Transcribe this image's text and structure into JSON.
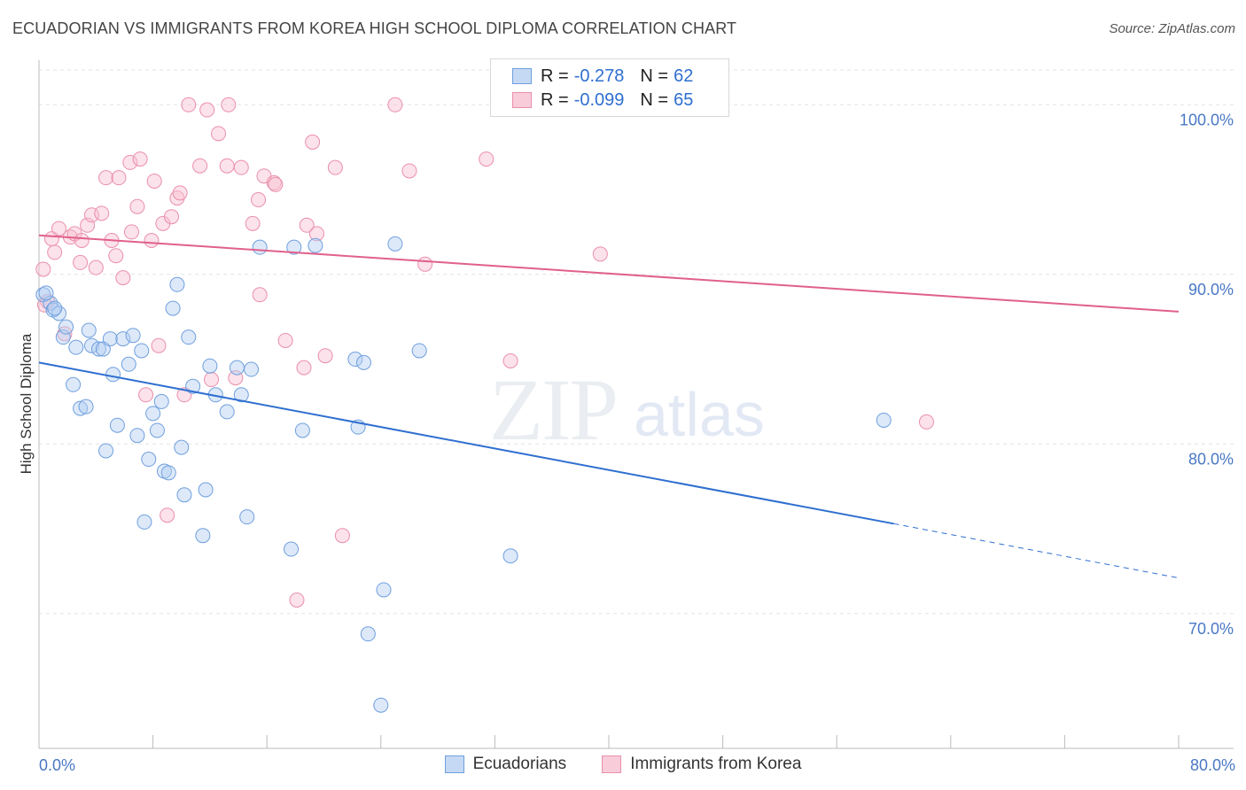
{
  "title": "ECUADORIAN VS IMMIGRANTS FROM KOREA HIGH SCHOOL DIPLOMA CORRELATION CHART",
  "source": "Source: ZipAtlas.com",
  "watermark": {
    "zip": "ZIP",
    "atlas": "atlas"
  },
  "legend_top": [
    {
      "r_label": "R =",
      "r_value": "-0.278",
      "n_label": "N =",
      "n_value": "62"
    },
    {
      "r_label": "R =",
      "r_value": "-0.099",
      "n_label": "N =",
      "n_value": "65"
    }
  ],
  "legend_bottom": [
    "Ecuadorians",
    "Immigrants from Korea"
  ],
  "chart_data": {
    "type": "scatter",
    "title": "ECUADORIAN VS IMMIGRANTS FROM KOREA HIGH SCHOOL DIPLOMA CORRELATION CHART",
    "xlabel": "",
    "ylabel": "High School Diploma",
    "xlim": [
      0,
      80
    ],
    "ylim": [
      62,
      104
    ],
    "x_tick_labels": [
      "0.0%",
      "80.0%"
    ],
    "y_ticks": [
      70,
      80,
      90,
      100
    ],
    "y_tick_labels": [
      "70.0%",
      "80.0%",
      "90.0%",
      "100.0%"
    ],
    "grid": true,
    "legend_placement": "top-center and bottom",
    "colors": {
      "blue": "#6f9fde",
      "pink": "#ea8fac",
      "blue_line": "#2f6fd0",
      "pink_line": "#e0608c"
    },
    "series": [
      {
        "name": "Ecuadorians",
        "color": "#6f9fde",
        "points": [
          [
            0.3,
            88.8
          ],
          [
            0.8,
            88.3
          ],
          [
            1.0,
            87.9
          ],
          [
            1.4,
            87.7
          ],
          [
            1.7,
            86.3
          ],
          [
            1.9,
            86.9
          ],
          [
            2.4,
            83.5
          ],
          [
            2.6,
            85.7
          ],
          [
            2.9,
            82.1
          ],
          [
            3.3,
            82.2
          ],
          [
            3.5,
            86.7
          ],
          [
            3.7,
            85.8
          ],
          [
            4.2,
            85.6
          ],
          [
            4.5,
            85.6
          ],
          [
            4.7,
            79.6
          ],
          [
            5.0,
            86.2
          ],
          [
            5.2,
            84.1
          ],
          [
            5.5,
            81.1
          ],
          [
            5.9,
            86.2
          ],
          [
            6.3,
            84.7
          ],
          [
            6.6,
            86.4
          ],
          [
            6.9,
            80.5
          ],
          [
            7.2,
            85.5
          ],
          [
            7.4,
            75.4
          ],
          [
            7.7,
            79.1
          ],
          [
            8.0,
            81.8
          ],
          [
            8.3,
            80.8
          ],
          [
            8.6,
            82.5
          ],
          [
            8.8,
            78.4
          ],
          [
            9.1,
            78.3
          ],
          [
            9.4,
            88.0
          ],
          [
            9.7,
            89.4
          ],
          [
            10.0,
            79.8
          ],
          [
            10.2,
            77.0
          ],
          [
            10.5,
            86.3
          ],
          [
            10.8,
            83.4
          ],
          [
            11.5,
            74.6
          ],
          [
            11.7,
            77.3
          ],
          [
            12.0,
            84.6
          ],
          [
            12.4,
            82.9
          ],
          [
            13.2,
            81.9
          ],
          [
            13.9,
            84.5
          ],
          [
            14.2,
            82.9
          ],
          [
            14.9,
            84.4
          ],
          [
            14.6,
            75.7
          ],
          [
            15.5,
            91.6
          ],
          [
            17.7,
            73.8
          ],
          [
            17.9,
            91.6
          ],
          [
            18.5,
            80.8
          ],
          [
            19.4,
            91.7
          ],
          [
            22.2,
            85.0
          ],
          [
            22.4,
            81.0
          ],
          [
            22.8,
            84.8
          ],
          [
            23.1,
            68.8
          ],
          [
            24.0,
            64.6
          ],
          [
            24.2,
            71.4
          ],
          [
            25.0,
            91.8
          ],
          [
            26.7,
            85.5
          ],
          [
            33.1,
            73.4
          ],
          [
            59.3,
            81.4
          ],
          [
            0.5,
            88.9
          ],
          [
            1.1,
            88.0
          ]
        ],
        "trend": {
          "x": [
            0,
            60
          ],
          "y": [
            84.8,
            75.3
          ],
          "dashed_to": [
            80,
            72.1
          ]
        }
      },
      {
        "name": "Immigrants from Korea",
        "color": "#ea8fac",
        "points": [
          [
            0.3,
            90.3
          ],
          [
            0.6,
            88.4
          ],
          [
            0.9,
            92.1
          ],
          [
            1.1,
            91.3
          ],
          [
            1.4,
            92.7
          ],
          [
            1.8,
            86.5
          ],
          [
            2.2,
            92.2
          ],
          [
            2.5,
            92.4
          ],
          [
            2.9,
            90.7
          ],
          [
            3.0,
            92.0
          ],
          [
            3.4,
            92.9
          ],
          [
            3.7,
            93.5
          ],
          [
            4.0,
            90.4
          ],
          [
            4.4,
            93.6
          ],
          [
            4.7,
            95.7
          ],
          [
            5.1,
            92.0
          ],
          [
            5.4,
            91.1
          ],
          [
            5.6,
            95.7
          ],
          [
            5.9,
            89.8
          ],
          [
            6.4,
            96.6
          ],
          [
            6.5,
            92.5
          ],
          [
            6.9,
            94.0
          ],
          [
            7.1,
            96.8
          ],
          [
            7.5,
            82.9
          ],
          [
            7.9,
            92.0
          ],
          [
            8.1,
            95.5
          ],
          [
            8.4,
            85.8
          ],
          [
            8.7,
            93.0
          ],
          [
            9.0,
            75.8
          ],
          [
            9.3,
            93.4
          ],
          [
            9.7,
            94.5
          ],
          [
            9.9,
            94.8
          ],
          [
            10.2,
            82.9
          ],
          [
            10.5,
            100.0
          ],
          [
            11.3,
            96.4
          ],
          [
            11.8,
            99.7
          ],
          [
            12.1,
            83.8
          ],
          [
            12.6,
            98.3
          ],
          [
            13.2,
            96.4
          ],
          [
            13.3,
            100.0
          ],
          [
            13.8,
            83.9
          ],
          [
            14.2,
            96.3
          ],
          [
            15.0,
            93.0
          ],
          [
            15.4,
            94.4
          ],
          [
            15.5,
            88.8
          ],
          [
            15.8,
            95.8
          ],
          [
            16.5,
            95.4
          ],
          [
            16.6,
            95.3
          ],
          [
            17.3,
            86.1
          ],
          [
            18.6,
            84.5
          ],
          [
            18.8,
            92.9
          ],
          [
            19.2,
            97.8
          ],
          [
            19.5,
            92.4
          ],
          [
            20.1,
            85.2
          ],
          [
            20.8,
            96.3
          ],
          [
            21.3,
            74.6
          ],
          [
            18.1,
            70.8
          ],
          [
            25.0,
            100.0
          ],
          [
            26.0,
            96.1
          ],
          [
            27.1,
            90.6
          ],
          [
            31.4,
            96.8
          ],
          [
            33.1,
            84.9
          ],
          [
            39.4,
            91.2
          ],
          [
            62.3,
            81.3
          ],
          [
            0.4,
            88.2
          ]
        ],
        "trend": {
          "x": [
            0,
            80
          ],
          "y": [
            92.3,
            87.8
          ]
        }
      }
    ]
  }
}
